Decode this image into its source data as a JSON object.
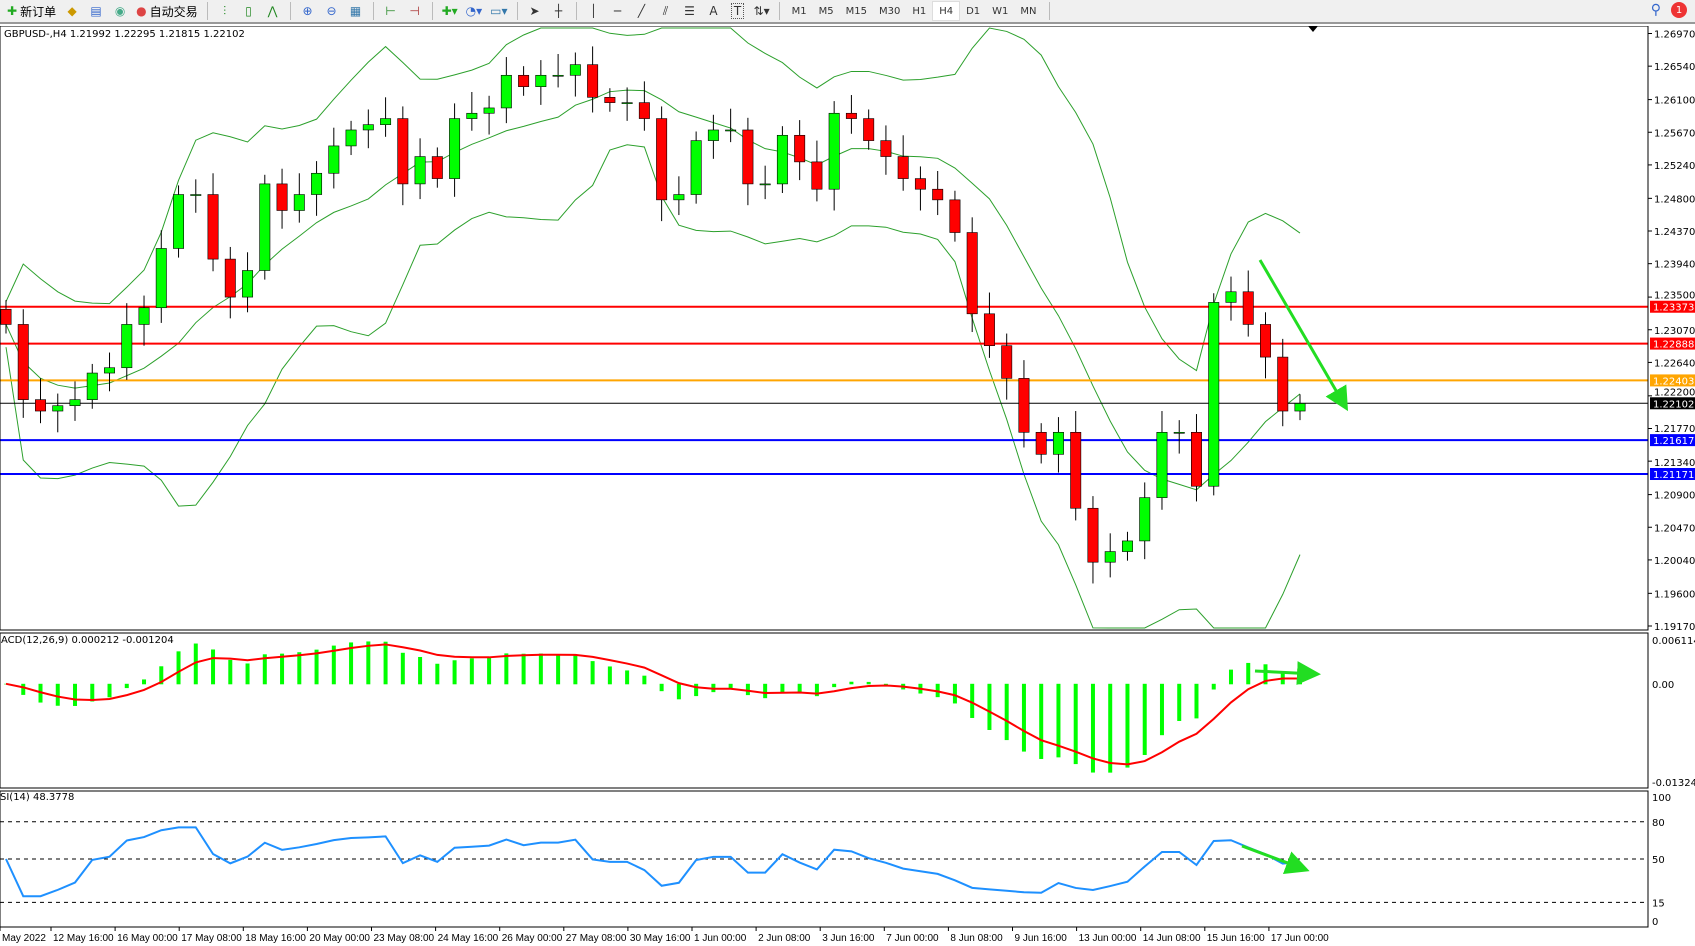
{
  "toolbar": {
    "new_order": "新订单",
    "auto_trade": "自动交易",
    "icons": [
      "new-order-icon",
      "expert-icon",
      "history-icon",
      "signal-icon",
      "auto-trade-icon",
      "bar-chart-icon",
      "candle-chart-icon",
      "line-chart-icon",
      "zoom-in-icon",
      "zoom-out-icon",
      "tile-icon",
      "autoscroll-icon",
      "shift-icon",
      "indicators-icon",
      "periods-icon",
      "templates-icon",
      "cursor-icon",
      "crosshair-icon",
      "vline-icon",
      "hline-icon",
      "trendline-icon",
      "fibo-icon",
      "channel-icon",
      "text-icon",
      "label-icon",
      "arrows-icon"
    ],
    "text_tool": "A",
    "label_tool": "T",
    "timeframes": [
      "M1",
      "M5",
      "M15",
      "M30",
      "H1",
      "H4",
      "D1",
      "W1",
      "MN"
    ],
    "active_timeframe": "H4",
    "notification_count": "1"
  },
  "chart_data": {
    "type": "candlestick",
    "title": "GBPUSD-,H4  1.21992 1.22295 1.21815 1.22102",
    "symbol": "GBPUSD-",
    "timeframe": "H4",
    "last_ohlc": {
      "open": 1.21992,
      "high": 1.22295,
      "low": 1.21815,
      "close": 1.22102
    },
    "ylim": [
      1.1917,
      1.2697
    ],
    "price_ticks": [
      "1.26970",
      "1.26540",
      "1.26100",
      "1.25670",
      "1.25240",
      "1.24800",
      "1.24370",
      "1.23940",
      "1.23500",
      "1.23070",
      "1.22640",
      "1.22200",
      "1.21770",
      "1.21340",
      "1.20900",
      "1.20470",
      "1.20040",
      "1.19600",
      "1.19170"
    ],
    "time_ticks": [
      "May 2022",
      "12 May 16:00",
      "16 May 00:00",
      "17 May 08:00",
      "18 May 16:00",
      "20 May 00:00",
      "23 May 08:00",
      "24 May 16:00",
      "26 May 00:00",
      "27 May 08:00",
      "30 May 16:00",
      "1 Jun 00:00",
      "2 Jun 08:00",
      "3 Jun 16:00",
      "7 Jun 00:00",
      "8 Jun 08:00",
      "9 Jun 16:00",
      "13 Jun 00:00",
      "14 Jun 08:00",
      "15 Jun 16:00",
      "17 Jun 00:00"
    ],
    "closes": [
      1.2314,
      1.2215,
      1.22,
      1.2207,
      1.2215,
      1.225,
      1.2257,
      1.2314,
      1.2336,
      1.2414,
      1.2485,
      1.2485,
      1.24,
      1.235,
      1.2385,
      1.2499,
      1.2464,
      1.2485,
      1.2513,
      1.2549,
      1.257,
      1.2577,
      1.2585,
      1.2499,
      1.2535,
      1.2506,
      1.2585,
      1.2592,
      1.2599,
      1.2642,
      1.2627,
      1.2642,
      1.2642,
      1.2656,
      1.2613,
      1.2606,
      1.2606,
      1.2585,
      1.2478,
      1.2485,
      1.2556,
      1.257,
      1.257,
      1.2499,
      1.2499,
      1.2563,
      1.2528,
      1.2492,
      1.2592,
      1.2585,
      1.2556,
      1.2535,
      1.2506,
      1.2492,
      1.2478,
      1.2435,
      1.2328,
      1.2286,
      1.2243,
      1.2172,
      1.2143,
      1.2172,
      1.2072,
      1.2001,
      1.2015,
      1.2029,
      1.2086,
      1.2172,
      1.2172,
      1.2101,
      1.2343,
      1.2357,
      1.2314,
      1.2271,
      1.22,
      1.221
    ],
    "bullish_color": "#00ff00",
    "bearish_color": "#ff0000",
    "bands_color": "#2ca02c",
    "levels": [
      {
        "price": 1.23373,
        "label": "1.23373",
        "color": "#ff0000"
      },
      {
        "price": 1.22888,
        "label": "1.22888",
        "color": "#ff0000"
      },
      {
        "price": 1.22403,
        "label": "1.22403",
        "color": "#ffa500"
      },
      {
        "price": 1.22102,
        "label": "1.22102",
        "color": "#000000"
      },
      {
        "price": 1.21617,
        "label": "1.21617",
        "color": "#0000ff"
      },
      {
        "price": 1.21171,
        "label": "1.21171",
        "color": "#0000ff"
      }
    ],
    "annotation_color": "#22dd22",
    "macd": {
      "label": "ACD(12,26,9) 0.000212 -0.001204",
      "ticks": [
        "0.006114",
        "0.00",
        "-0.013241"
      ],
      "ylim": [
        -0.013241,
        0.006114
      ],
      "histogram_color": "#00ff00",
      "signal_color": "#ff0000"
    },
    "rsi": {
      "label": "SI(14) 48.3778",
      "ticks": [
        "100",
        "80",
        "50",
        "15",
        "0"
      ],
      "levels": [
        80,
        50,
        15
      ],
      "ylim": [
        0,
        100
      ],
      "line_color": "#1e90ff"
    }
  }
}
